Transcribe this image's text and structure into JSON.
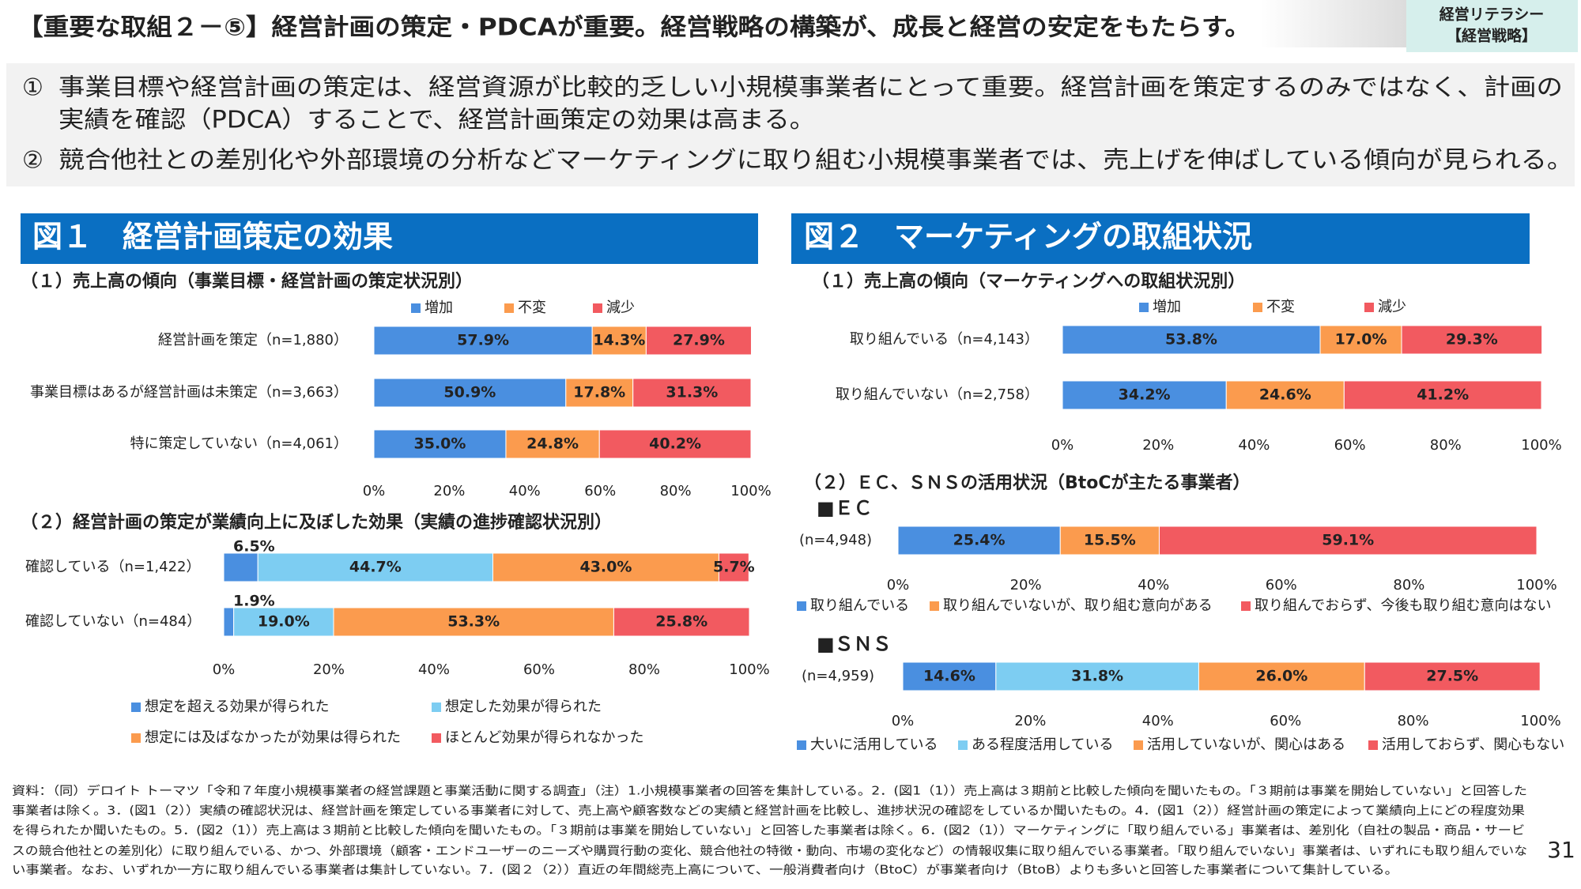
{
  "header": {
    "title": "【重要な取組２－⑤】経営計画の策定・PDCAが重要。経営戦略の構築が、成長と経営の安定をもたらす。",
    "badge": [
      "経営リテラシー",
      "【経営戦略】"
    ]
  },
  "bullets": [
    {
      "marker": "①",
      "lines": [
        "事業目標や経営計画の策定は、経営資源が比較的乏しい小規模事業者にとって重要。経営計画を策定するのみではなく、計画の",
        "実績を確認（PDCA）することで、経営計画策定の効果は高まる。"
      ]
    },
    {
      "marker": "②",
      "lines": [
        "競合他社との差別化や外部環境の分析などマーケティングに取り組む小規模事業者では、売上げを伸ばしている傾向が見られる。"
      ]
    }
  ],
  "figures": [
    {
      "title": "図１　経営計画策定の効果"
    },
    {
      "title": "図２　マーケティングの取組状況",
      "subheading": "（２）ＥＣ、ＳＮＳの活用状況（BtoCが主たる事業者）"
    }
  ],
  "chart_data": [
    {
      "type": "bar",
      "orientation": "horizontal",
      "stacked": true,
      "title": "（１）売上高の傾向（事業目標・経営計画の策定状況別）",
      "categories": [
        "経営計画を策定（n=1,880）",
        "事業目標はあるが経営計画は未策定（n=3,663）",
        "特に策定していない（n=4,061）"
      ],
      "series": [
        {
          "name": "増加",
          "color": "#4a8fe0",
          "values": [
            57.9,
            50.9,
            35.0
          ],
          "value_labels": [
            "57.9%",
            "50.9%",
            "35.0%"
          ]
        },
        {
          "name": "不変",
          "color": "#fb9b4e",
          "values": [
            14.3,
            17.8,
            24.8
          ],
          "value_labels": [
            "14.3%",
            "17.8%",
            "24.8%"
          ]
        },
        {
          "name": "減少",
          "color": "#f25a60",
          "values": [
            27.9,
            31.3,
            40.2
          ],
          "value_labels": [
            "27.9%",
            "31.3%",
            "40.2%"
          ]
        }
      ],
      "xlim": [
        0,
        100
      ],
      "xticks": [
        {
          "value": 0,
          "label": "0%"
        },
        {
          "value": 20,
          "label": "20%"
        },
        {
          "value": 40,
          "label": "40%"
        },
        {
          "value": 60,
          "label": "60%"
        },
        {
          "value": 80,
          "label": "80%"
        },
        {
          "value": 100,
          "label": "100%"
        }
      ],
      "legend": "top"
    },
    {
      "type": "bar",
      "orientation": "horizontal",
      "stacked": true,
      "title": "（２）経営計画の策定が業績向上に及ぼした効果（実績の進捗確認状況別）",
      "categories": [
        "確認している（n=1,422）",
        "確認していない（n=484）"
      ],
      "series": [
        {
          "name": "想定を超える効果が得られた",
          "color": "#4a8fe0",
          "values": [
            6.5,
            1.9
          ],
          "value_labels": [
            "6.5%",
            "1.9%"
          ]
        },
        {
          "name": "想定した効果が得られた",
          "color": "#7dcdf2",
          "values": [
            44.7,
            19.0
          ],
          "value_labels": [
            "44.7%",
            "19.0%"
          ]
        },
        {
          "name": "想定には及ばなかったが効果は得られた",
          "color": "#fb9b4e",
          "values": [
            43.0,
            53.3
          ],
          "value_labels": [
            "43.0%",
            "53.3%"
          ]
        },
        {
          "name": "ほとんど効果が得られなかった",
          "color": "#f25a60",
          "values": [
            5.7,
            25.8
          ],
          "value_labels": [
            "5.7%",
            "25.8%"
          ]
        }
      ],
      "xlim": [
        0,
        100
      ],
      "xticks": [
        {
          "value": 0,
          "label": "0%"
        },
        {
          "value": 20,
          "label": "20%"
        },
        {
          "value": 40,
          "label": "40%"
        },
        {
          "value": 60,
          "label": "60%"
        },
        {
          "value": 80,
          "label": "80%"
        },
        {
          "value": 100,
          "label": "100%"
        }
      ],
      "legend": "bottom"
    },
    {
      "type": "bar",
      "orientation": "horizontal",
      "stacked": true,
      "title": "（１）売上高の傾向（マーケティングへの取組状況別）",
      "categories": [
        "取り組んでいる（n=4,143）",
        "取り組んでいない（n=2,758）"
      ],
      "series": [
        {
          "name": "増加",
          "color": "#4a8fe0",
          "values": [
            53.8,
            34.2
          ],
          "value_labels": [
            "53.8%",
            "34.2%"
          ]
        },
        {
          "name": "不変",
          "color": "#fb9b4e",
          "values": [
            17.0,
            24.6
          ],
          "value_labels": [
            "17.0%",
            "24.6%"
          ]
        },
        {
          "name": "減少",
          "color": "#f25a60",
          "values": [
            29.3,
            41.2
          ],
          "value_labels": [
            "29.3%",
            "41.2%"
          ]
        }
      ],
      "xlim": [
        0,
        100
      ],
      "xticks": [
        {
          "value": 0,
          "label": "0%"
        },
        {
          "value": 20,
          "label": "20%"
        },
        {
          "value": 40,
          "label": "40%"
        },
        {
          "value": 60,
          "label": "60%"
        },
        {
          "value": 80,
          "label": "80%"
        },
        {
          "value": 100,
          "label": "100%"
        }
      ],
      "legend": "top"
    },
    {
      "type": "bar",
      "orientation": "horizontal",
      "stacked": true,
      "title": "■ＥＣ",
      "categories": [
        "(n=4,948)"
      ],
      "series": [
        {
          "name": "取り組んでいる",
          "color": "#4a8fe0",
          "values": [
            25.4
          ],
          "value_labels": [
            "25.4%"
          ]
        },
        {
          "name": "取り組んでいないが、取り組む意向がある",
          "color": "#fb9b4e",
          "values": [
            15.5
          ],
          "value_labels": [
            "15.5%"
          ]
        },
        {
          "name": "取り組んでおらず、今後も取り組む意向はない",
          "color": "#f25a60",
          "values": [
            59.1
          ],
          "value_labels": [
            "59.1%"
          ]
        }
      ],
      "xlim": [
        0,
        100
      ],
      "xticks": [
        {
          "value": 0,
          "label": "0%"
        },
        {
          "value": 20,
          "label": "20%"
        },
        {
          "value": 40,
          "label": "40%"
        },
        {
          "value": 60,
          "label": "60%"
        },
        {
          "value": 80,
          "label": "80%"
        },
        {
          "value": 100,
          "label": "100%"
        }
      ],
      "legend": "bottom"
    },
    {
      "type": "bar",
      "orientation": "horizontal",
      "stacked": true,
      "title": "■ＳＮＳ",
      "categories": [
        "(n=4,959)"
      ],
      "series": [
        {
          "name": "大いに活用している",
          "color": "#4a8fe0",
          "values": [
            14.6
          ],
          "value_labels": [
            "14.6%"
          ]
        },
        {
          "name": "ある程度活用している",
          "color": "#7dcdf2",
          "values": [
            31.8
          ],
          "value_labels": [
            "31.8%"
          ]
        },
        {
          "name": "活用していないが、関心はある",
          "color": "#fb9b4e",
          "values": [
            26.0
          ],
          "value_labels": [
            "26.0%"
          ]
        },
        {
          "name": "活用しておらず、関心もない",
          "color": "#f25a60",
          "values": [
            27.5
          ],
          "value_labels": [
            "27.5%"
          ]
        }
      ],
      "xlim": [
        0,
        100
      ],
      "xticks": [
        {
          "value": 0,
          "label": "0%"
        },
        {
          "value": 20,
          "label": "20%"
        },
        {
          "value": 40,
          "label": "40%"
        },
        {
          "value": 60,
          "label": "60%"
        },
        {
          "value": 80,
          "label": "80%"
        },
        {
          "value": 100,
          "label": "100%"
        }
      ],
      "legend": "bottom"
    }
  ],
  "footnote": [
    "資料：（同）デロイト トーマツ「令和７年度小規模事業者の経営課題と事業活動に関する調査」（注）1.小規模事業者の回答を集計している。2．(図1（1））売上高は３期前と比較した傾向を聞いたもの。「３期前は事業を開始していない」と回答した",
    "事業者は除く。3．(図1（2））実績の確認状況は、経営計画を策定している事業者に対して、売上高や顧客数などの実績と経営計画を比較し、進捗状況の確認をしているか聞いたもの。4．(図1（2））経営計画の策定によって業績向上にどの程度効果",
    "を得られたか聞いたもの。5．(図2（1））売上高は３期前と比較した傾向を聞いたもの。「３期前は事業を開始していない」と回答した事業者は除く。6．(図2（1））マーケティングに「取り組んでいる」事業者は、差別化（自社の製品・商品・サービ",
    "スの競合他社との差別化）に取り組んでいる、かつ、外部環境（顧客・エンドユーザーのニーズや購買行動の変化、競合他社の特徴・動向、市場の変化など）の情報収集に取り組んでいる事業者。「取り組んでいない」事業者は、いずれにも取り組んでいな",
    "い事業者。なお、いずれか一方に取り組んでいる事業者は集計していない。7．(図２（2））直近の年間総売上高について、一般消費者向け（BtoC）が事業者向け（BtoB）よりも多いと回答した事業者について集計している。"
  ],
  "page_number": "31"
}
